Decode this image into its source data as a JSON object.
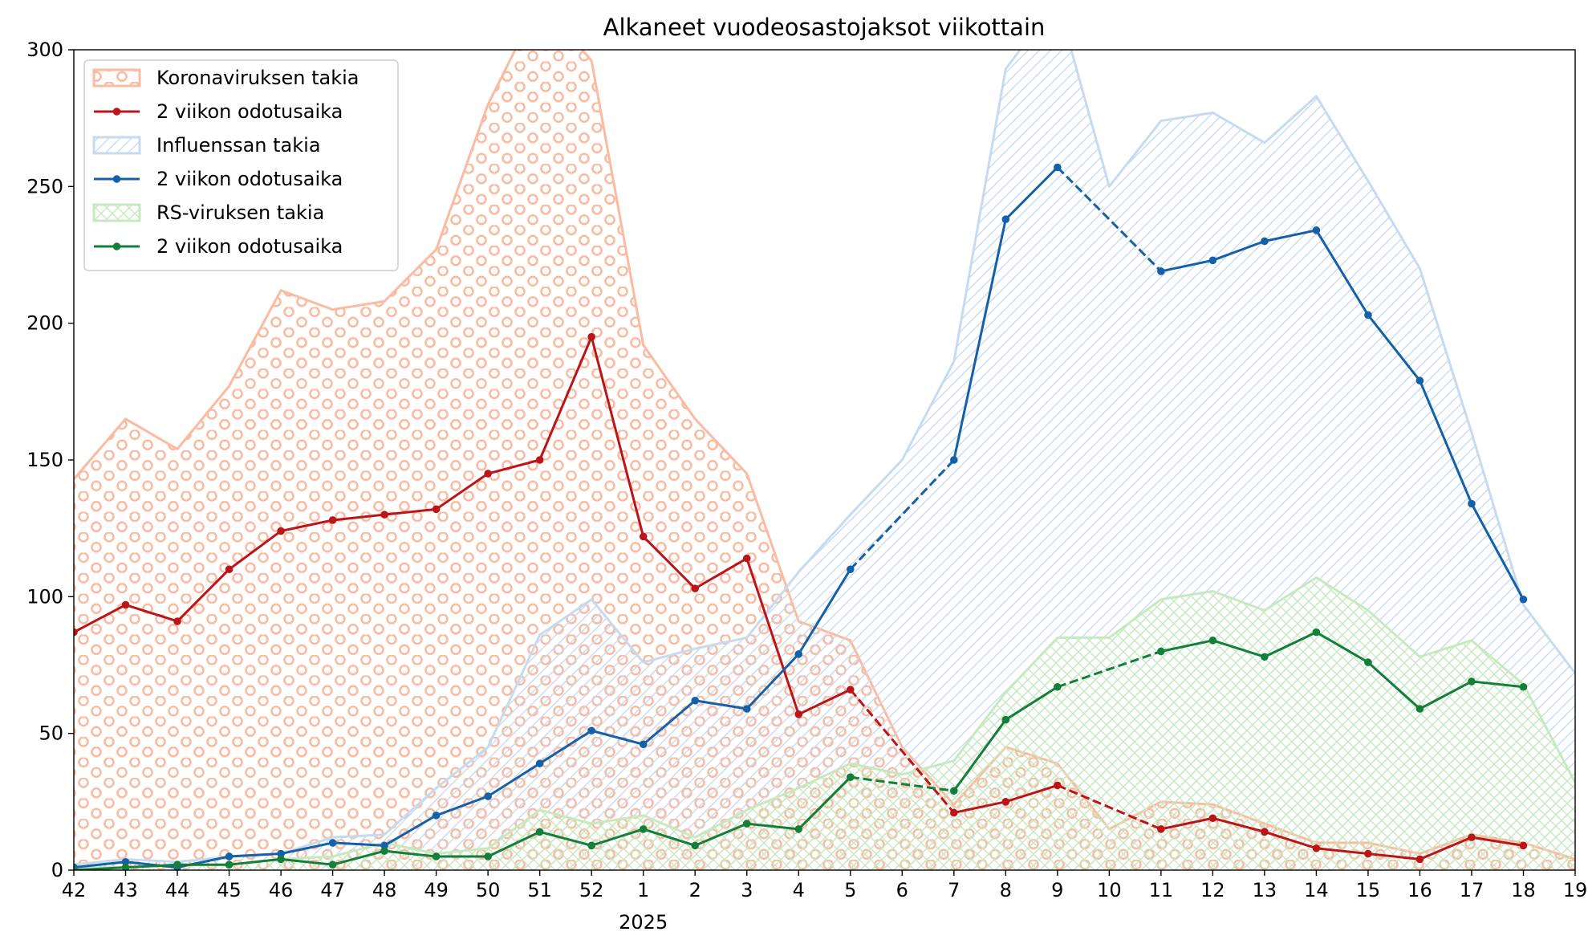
{
  "chart_data": {
    "type": "area",
    "title": "Alkaneet vuodeosastojaksot viikottain",
    "xlabel": "",
    "ylabel": "",
    "year_label": "2025",
    "year_label_under": "1",
    "categories": [
      "42",
      "43",
      "44",
      "45",
      "46",
      "47",
      "48",
      "49",
      "50",
      "51",
      "52",
      "1",
      "2",
      "3",
      "4",
      "5",
      "6",
      "7",
      "8",
      "9",
      "10",
      "11",
      "12",
      "13",
      "14",
      "15",
      "16",
      "17",
      "18",
      "19"
    ],
    "ylim": [
      0,
      300
    ],
    "yticks": [
      0,
      50,
      100,
      150,
      200,
      250,
      300
    ],
    "grid": false,
    "legend_position": "upper-left",
    "series": [
      {
        "name": "Koronaviruksen takia",
        "kind": "area",
        "pattern": "circles",
        "color": "#fcbba1",
        "values": [
          143,
          165,
          154,
          177,
          212,
          205,
          208,
          227,
          280,
          318,
          296,
          192,
          165,
          145,
          91,
          84,
          45,
          24,
          45,
          39,
          15,
          25,
          24,
          17,
          10,
          10,
          6,
          13,
          10,
          4
        ]
      },
      {
        "name": "2 viikon odotusaika",
        "kind": "line",
        "color": "#bb151a",
        "values": [
          87,
          97,
          91,
          110,
          124,
          128,
          130,
          132,
          145,
          150,
          195,
          122,
          103,
          114,
          57,
          66,
          null,
          21,
          25,
          31,
          null,
          15,
          19,
          14,
          8,
          6,
          4,
          12,
          9,
          null
        ],
        "dashed_segments": [
          [
            15,
            17
          ],
          [
            19,
            21
          ]
        ]
      },
      {
        "name": "Influenssan takia",
        "kind": "area",
        "pattern": "diagonal",
        "color": "#c6dbef",
        "values": [
          2,
          4,
          3,
          5,
          6,
          12,
          13,
          30,
          45,
          86,
          99,
          76,
          81,
          85,
          109,
          130,
          150,
          186,
          293,
          318,
          250,
          274,
          277,
          266,
          283,
          252,
          220,
          160,
          97,
          72
        ]
      },
      {
        "name": "2 viikon odotusaika",
        "kind": "line",
        "color": "#1561a9",
        "values": [
          1,
          3,
          1,
          5,
          6,
          10,
          9,
          20,
          27,
          39,
          51,
          46,
          62,
          59,
          79,
          110,
          null,
          150,
          238,
          257,
          null,
          219,
          223,
          230,
          234,
          203,
          179,
          134,
          99,
          null
        ],
        "dashed_segments": [
          [
            15,
            17
          ],
          [
            19,
            21
          ]
        ]
      },
      {
        "name": "RS-viruksen takia",
        "kind": "area",
        "pattern": "crosshatch",
        "color": "#c7e9c0",
        "values": [
          1,
          1,
          2,
          2,
          4,
          5,
          10,
          6,
          8,
          22,
          17,
          20,
          12,
          22,
          30,
          39,
          35,
          40,
          65,
          85,
          85,
          99,
          102,
          95,
          107,
          95,
          78,
          84,
          68,
          32
        ]
      },
      {
        "name": "2 viikon odotusaika",
        "kind": "line",
        "color": "#137f3b",
        "values": [
          0,
          1,
          2,
          2,
          4,
          2,
          7,
          5,
          5,
          14,
          9,
          15,
          9,
          17,
          15,
          34,
          null,
          29,
          55,
          67,
          null,
          80,
          84,
          78,
          87,
          76,
          59,
          69,
          67,
          null
        ],
        "dashed_segments": [
          [
            15,
            17
          ],
          [
            19,
            21
          ]
        ]
      }
    ]
  }
}
